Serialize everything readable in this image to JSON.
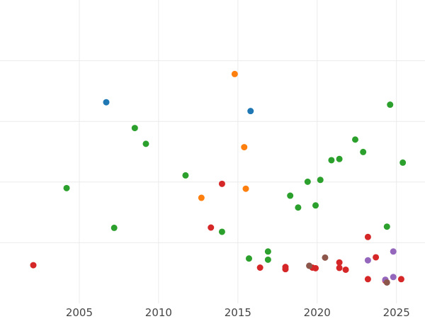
{
  "chart_data": {
    "type": "scatter",
    "title": "",
    "xlabel": "",
    "ylabel": "",
    "xlim": [
      2000.0,
      2026.8
    ],
    "ylim": [
      0.0,
      100.0
    ],
    "xticks": [
      2005,
      2010,
      2015,
      2020,
      2025
    ],
    "xtick_labels": [
      "2005",
      "2010",
      "2015",
      "2020",
      "2025"
    ],
    "yticks": [
      20,
      40,
      60,
      80
    ],
    "ytick_labels": [],
    "grid": true,
    "legend": null,
    "series": [
      {
        "name": "blue",
        "color": "#1f77b4",
        "points": [
          [
            2006.7,
            66.3
          ],
          [
            2015.8,
            63.4
          ]
        ]
      },
      {
        "name": "orange",
        "color": "#ff7f0e",
        "points": [
          [
            2014.8,
            75.6
          ],
          [
            2015.4,
            51.5
          ],
          [
            2015.5,
            37.8
          ],
          [
            2012.7,
            34.8
          ]
        ]
      },
      {
        "name": "green",
        "color": "#2ca02c",
        "points": [
          [
            2004.2,
            38.0
          ],
          [
            2007.2,
            24.9
          ],
          [
            2008.5,
            57.8
          ],
          [
            2009.2,
            52.6
          ],
          [
            2011.7,
            42.2
          ],
          [
            2014.0,
            23.6
          ],
          [
            2015.7,
            14.8
          ],
          [
            2016.9,
            17.1
          ],
          [
            2016.9,
            14.4
          ],
          [
            2018.3,
            35.5
          ],
          [
            2018.8,
            31.6
          ],
          [
            2019.4,
            40.1
          ],
          [
            2019.9,
            32.3
          ],
          [
            2020.2,
            40.7
          ],
          [
            2020.9,
            47.2
          ],
          [
            2021.4,
            47.6
          ],
          [
            2022.4,
            54.0
          ],
          [
            2022.9,
            49.9
          ],
          [
            2024.4,
            25.3
          ],
          [
            2024.6,
            65.5
          ],
          [
            2025.4,
            46.4
          ]
        ]
      },
      {
        "name": "red",
        "color": "#d62728",
        "points": [
          [
            2002.1,
            12.6
          ],
          [
            2013.3,
            25.0
          ],
          [
            2014.0,
            39.4
          ],
          [
            2016.4,
            11.8
          ],
          [
            2018.0,
            12.0
          ],
          [
            2018.0,
            11.3
          ],
          [
            2019.7,
            11.8
          ],
          [
            2019.9,
            11.6
          ],
          [
            2021.4,
            13.5
          ],
          [
            2021.4,
            11.7
          ],
          [
            2021.8,
            11.1
          ],
          [
            2023.2,
            21.9
          ],
          [
            2023.2,
            8.0
          ],
          [
            2023.7,
            15.2
          ],
          [
            2024.3,
            7.5
          ],
          [
            2025.3,
            8.0
          ]
        ]
      },
      {
        "name": "purple",
        "color": "#9467bd",
        "points": [
          [
            2023.2,
            14.2
          ],
          [
            2024.8,
            17.1
          ],
          [
            2024.8,
            8.7
          ],
          [
            2024.3,
            7.8
          ]
        ]
      },
      {
        "name": "brown",
        "color": "#8c564b",
        "points": [
          [
            2019.5,
            12.4
          ],
          [
            2020.5,
            15.1
          ],
          [
            2024.4,
            6.9
          ]
        ]
      }
    ]
  }
}
